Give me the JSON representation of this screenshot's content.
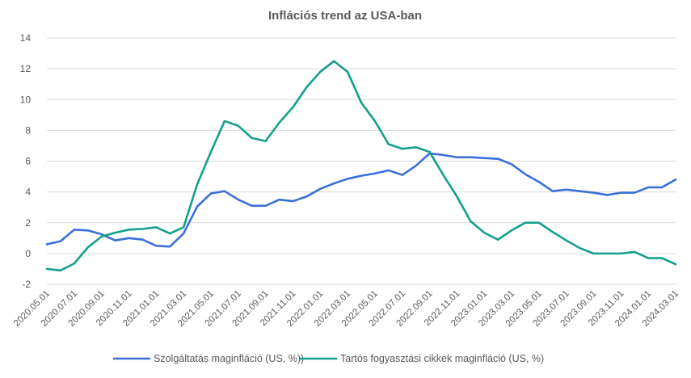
{
  "chart_data": {
    "type": "line",
    "title": "Inflációs trend az USA-ban",
    "ylim": [
      -2,
      14
    ],
    "yticks": [
      -2,
      0,
      2,
      4,
      6,
      8,
      10,
      12,
      14
    ],
    "grid": true,
    "legend_placement": "bottom",
    "x": [
      "2020.05.01",
      "2020.06.01",
      "2020.07.01",
      "2020.08.01",
      "2020.09.01",
      "2020.10.01",
      "2020.11.01",
      "2020.12.01",
      "2021.01.01",
      "2021.02.01",
      "2021.03.01",
      "2021.04.01",
      "2021.05.01",
      "2021.06.01",
      "2021.07.01",
      "2021.08.01",
      "2021.09.01",
      "2021.10.01",
      "2021.11.01",
      "2021.12.01",
      "2022.01.01",
      "2022.02.01",
      "2022.03.01",
      "2022.04.01",
      "2022.05.01",
      "2022.06.01",
      "2022.07.01",
      "2022.08.01",
      "2022.09.01",
      "2022.10.01",
      "2022.11.01",
      "2022.12.01",
      "2023.01.01",
      "2023.02.01",
      "2023.03.01",
      "2023.04.01",
      "2023.05.01",
      "2023.06.01",
      "2023.07.01",
      "2023.08.01",
      "2023.09.01",
      "2023.10.01",
      "2023.11.01",
      "2023.12.01",
      "2024.01.01",
      "2024.02.01",
      "2024.03.01"
    ],
    "xtick_labels": [
      "2020.05.01",
      "2020.07.01",
      "2020.09.01",
      "2020.11.01",
      "2021.01.01",
      "2021.03.01",
      "2021.05.01",
      "2021.07.01",
      "2021.09.01",
      "2021.11.01",
      "2022.01.01",
      "2022.03.01",
      "2022.05.01",
      "2022.07.01",
      "2022.09.01",
      "2022.11.01",
      "2023.01.01",
      "2023.03.01",
      "2023.05.01",
      "2023.07.01",
      "2023.09.01",
      "2023.11.01",
      "2024.01.01",
      "2024.03.01"
    ],
    "series": [
      {
        "name": "Szolgáltatás maginfláció (US, %))",
        "color": "#3a6fdc",
        "values": [
          0.6,
          0.8,
          1.55,
          1.5,
          1.25,
          0.85,
          1.0,
          0.9,
          0.5,
          0.45,
          1.3,
          3.05,
          3.9,
          4.05,
          3.5,
          3.1,
          3.1,
          3.5,
          3.4,
          3.7,
          4.2,
          4.55,
          4.85,
          5.05,
          5.2,
          5.4,
          5.1,
          5.7,
          6.5,
          6.4,
          6.25,
          6.25,
          6.2,
          6.15,
          5.8,
          5.15,
          4.65,
          4.05,
          4.15,
          4.05,
          3.95,
          3.8,
          3.95,
          3.95,
          4.3,
          4.3,
          4.8
        ]
      },
      {
        "name": "Tartós fogyasztási cikkek maginfláció (US, %)",
        "color": "#14a08c",
        "values": [
          -1.0,
          -1.1,
          -0.65,
          0.4,
          1.1,
          1.35,
          1.55,
          1.6,
          1.7,
          1.3,
          1.7,
          4.5,
          6.6,
          8.6,
          8.3,
          7.5,
          7.3,
          8.5,
          9.5,
          10.8,
          11.8,
          12.5,
          11.8,
          9.8,
          8.6,
          7.1,
          6.8,
          6.9,
          6.6,
          5.1,
          3.7,
          2.1,
          1.35,
          0.9,
          1.5,
          2.0,
          2.0,
          1.4,
          0.85,
          0.35,
          0.0,
          0.0,
          0.0,
          0.1,
          -0.3,
          -0.3,
          -0.7
        ]
      }
    ]
  }
}
